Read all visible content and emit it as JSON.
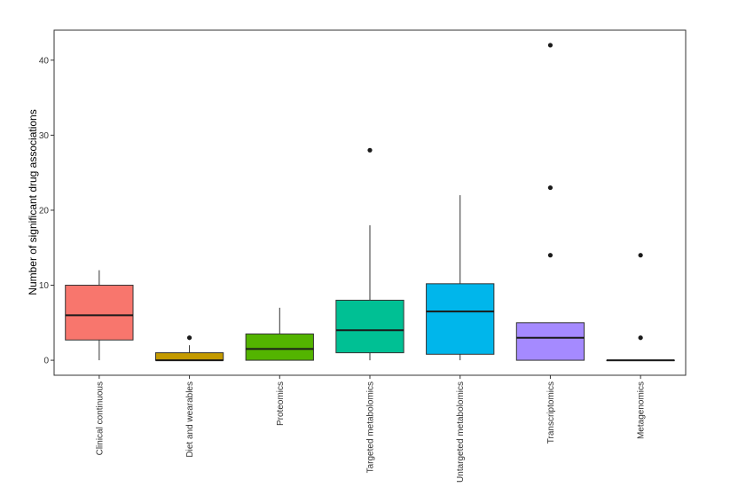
{
  "chart_data": {
    "type": "boxplot",
    "xlabel": "",
    "ylabel": "Number of significant drug associations",
    "ylim": [
      -2,
      44
    ],
    "yticks": [
      0,
      10,
      20,
      30,
      40
    ],
    "grid": false,
    "legend": "none",
    "categories": [
      "Clinical continuous",
      "Diet and wearables",
      "Proteomics",
      "Targeted metabolomics",
      "Untargeted metabolomics",
      "Transcriptomics",
      "Metagenomics"
    ],
    "boxes": [
      {
        "category": "Clinical continuous",
        "min": 0,
        "q1": 2.7,
        "median": 6,
        "q3": 10,
        "max": 12,
        "outliers": [],
        "color": "#F8766D"
      },
      {
        "category": "Diet and wearables",
        "min": 0,
        "q1": 0,
        "median": 0,
        "q3": 1,
        "max": 2,
        "outliers": [
          3
        ],
        "color": "#C49A00"
      },
      {
        "category": "Proteomics",
        "min": 0,
        "q1": 0,
        "median": 1.5,
        "q3": 3.5,
        "max": 7,
        "outliers": [],
        "color": "#53B400"
      },
      {
        "category": "Targeted metabolomics",
        "min": 0,
        "q1": 1,
        "median": 4,
        "q3": 8,
        "max": 18,
        "outliers": [
          28
        ],
        "color": "#00C094"
      },
      {
        "category": "Untargeted metabolomics",
        "min": 0,
        "q1": 0.8,
        "median": 6.5,
        "q3": 10.2,
        "max": 22,
        "outliers": [],
        "color": "#00B6EB"
      },
      {
        "category": "Transcriptomics",
        "min": 0,
        "q1": 0,
        "median": 3,
        "q3": 5,
        "max": 5,
        "outliers": [
          14,
          23,
          42
        ],
        "color": "#A58AFF"
      },
      {
        "category": "Metagenomics",
        "min": 0,
        "q1": 0,
        "median": 0,
        "q3": 0,
        "max": 0,
        "outliers": [
          3,
          14
        ],
        "color": "#FB61D7"
      }
    ]
  }
}
